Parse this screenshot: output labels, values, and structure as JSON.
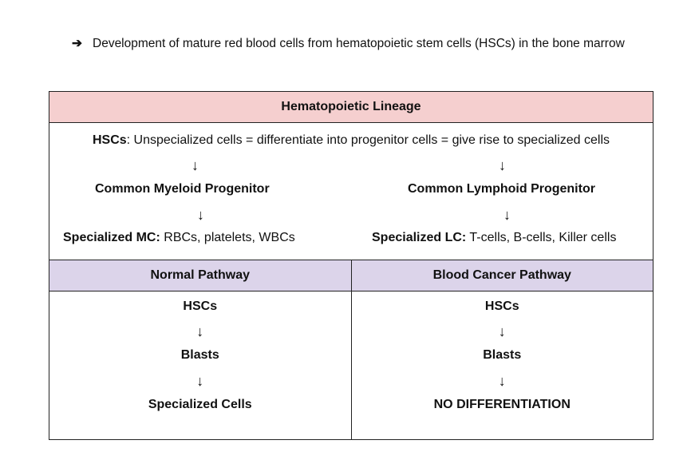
{
  "intro": {
    "bullet_icon": "right-arrow-icon",
    "text": "Development of mature red blood cells from hematopoietic stem cells (HSCs) in the bone marrow"
  },
  "lineage": {
    "title": "Hematopoietic Lineage",
    "hscs_label": "HSCs",
    "hscs_text": ": Unspecialized cells = differentiate into progenitor cells = give rise to specialized cells",
    "arrow": "↓",
    "myeloid": "Common Myeloid Progenitor",
    "lymphoid": "Common Lymphoid Progenitor",
    "mc_label": "Specialized MC:",
    "mc_text": " RBCs, platelets, WBCs",
    "lc_label": "Specialized LC:",
    "lc_text": " T-cells, B-cells, Killer cells"
  },
  "normal": {
    "title": "Normal Pathway",
    "steps": [
      "HSCs",
      "Blasts",
      "Specialized Cells"
    ]
  },
  "cancer": {
    "title": "Blood Cancer Pathway",
    "steps": [
      "HSCs",
      "Blasts",
      "NO DIFFERENTIATION"
    ]
  },
  "colors": {
    "lineage_header": "#f5cfcf",
    "pathway_header": "#dcd4ea"
  }
}
